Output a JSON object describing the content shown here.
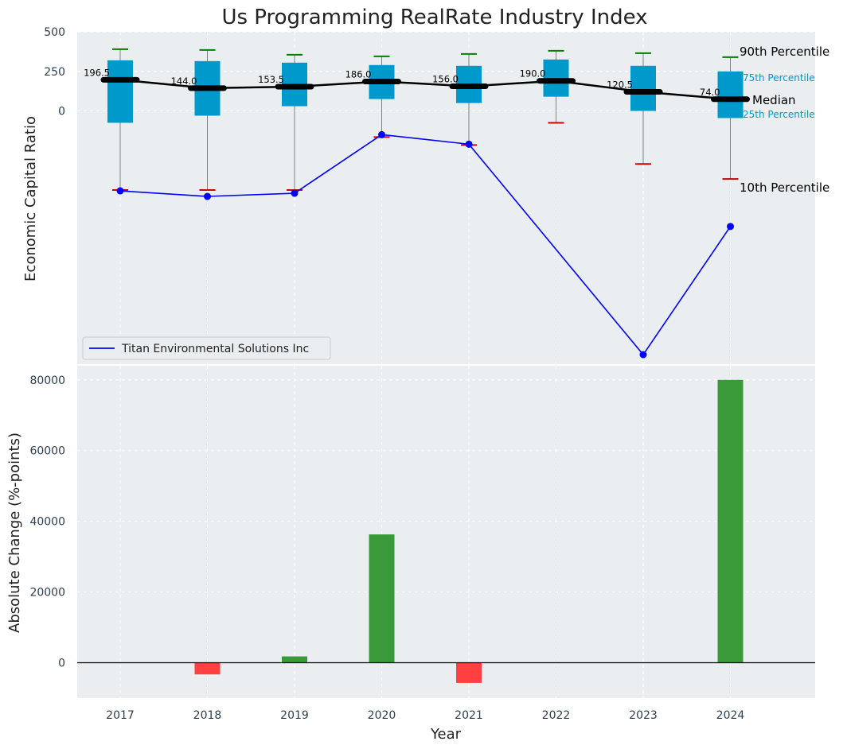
{
  "chart_data": [
    {
      "type": "box",
      "title": "Us Programming RealRate Industry Index",
      "ylabel": "Economic Capital Ratio",
      "ylim": [
        -1600,
        500
      ],
      "yticks": [
        0,
        250,
        500
      ],
      "grid": true,
      "legend_position": "bottom-left",
      "categories": [
        "2017",
        "2018",
        "2019",
        "2020",
        "2021",
        "2022",
        "2023",
        "2024"
      ],
      "box_series": {
        "p10": [
          -500,
          -500,
          -500,
          -165,
          -215,
          -75,
          -335,
          -430
        ],
        "p25": [
          -75,
          -30,
          30,
          75,
          50,
          90,
          0,
          -45
        ],
        "median": [
          196.5,
          144.0,
          153.5,
          186.0,
          156.0,
          190.0,
          120.5,
          74.0
        ],
        "p75": [
          320,
          315,
          305,
          290,
          285,
          325,
          285,
          250
        ],
        "p90": [
          390,
          385,
          355,
          345,
          360,
          380,
          365,
          340
        ]
      },
      "median_labels": [
        "196.5",
        "144.0",
        "153.5",
        "186.0",
        "156.0",
        "190.0",
        "120.5",
        "74.0"
      ],
      "percentile_labels": {
        "p90": "90th Percentile",
        "p75": "75th Percentile",
        "median": "Median",
        "p25": "25th Percentile",
        "p10": "10th Percentile"
      },
      "series": [
        {
          "name": "Titan Environmental Solutions Inc",
          "values": [
            -505,
            -540,
            -520,
            -150,
            -210,
            null,
            -1540,
            -730
          ]
        }
      ],
      "colors": {
        "box": "#0099cc",
        "median": "#000000",
        "whisker": "#808080",
        "p90_cap": "#008000",
        "p10_cap": "#cc0000",
        "company": "#0000ff",
        "percentile_small": "#0099cc",
        "background": "#eaeef0"
      }
    },
    {
      "type": "bar",
      "xlabel": "Year",
      "ylabel": "Absolute Change (%-points)",
      "ylim": [
        -10000,
        84000
      ],
      "yticks": [
        0,
        20000,
        40000,
        60000,
        80000
      ],
      "grid": true,
      "categories": [
        "2017",
        "2018",
        "2019",
        "2020",
        "2021",
        "2022",
        "2023",
        "2024"
      ],
      "values": [
        0,
        -3300,
        1800,
        36300,
        -5700,
        0,
        0,
        80000
      ],
      "colors": {
        "positive": "#3a9a3a",
        "negative": "#ff4040",
        "zero_line": "#000000"
      }
    }
  ]
}
